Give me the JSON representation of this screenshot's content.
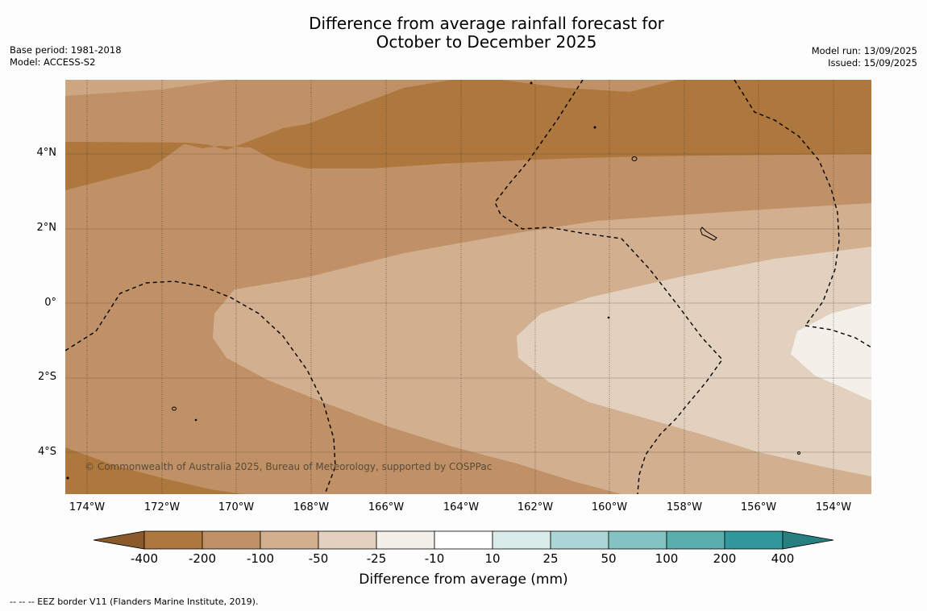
{
  "title": {
    "line1": "Difference from average rainfall forecast for",
    "line2": "October to December 2025"
  },
  "meta": {
    "base_period": "Base period: 1981-2018",
    "model": "Model: ACCESS-S2",
    "model_run": "Model run: 13/09/2025",
    "issued": "Issued: 15/09/2025"
  },
  "copyright": "© Commonwealth of Australia 2025, Bureau of Meteorology, supported by COSPPac",
  "lat_labels": [
    "4°N",
    "2°N",
    "0°",
    "2°S",
    "4°S"
  ],
  "lon_labels": [
    "174°W",
    "172°W",
    "170°W",
    "168°W",
    "166°W",
    "164°W",
    "162°W",
    "160°W",
    "158°W",
    "156°W",
    "154°W"
  ],
  "colorbar": {
    "label": "Difference from average (mm)",
    "ticks": [
      "-400",
      "-200",
      "-100",
      "-50",
      "-25",
      "-10",
      "10",
      "25",
      "50",
      "100",
      "200",
      "400"
    ],
    "colors": [
      "#8b5a2b",
      "#ad773d",
      "#c09166",
      "#d2b08f",
      "#e3d1c0",
      "#f4efe9",
      "#ffffff",
      "#d9ecea",
      "#abd6d5",
      "#84c3c1",
      "#5aaeac",
      "#31979a",
      "#27807f"
    ]
  },
  "footnote": "--  --  -- EEZ border V11 (Flanders Marine Institute, 2019)."
}
